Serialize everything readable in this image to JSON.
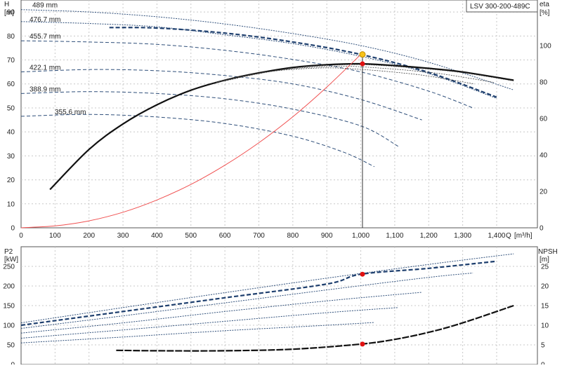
{
  "chart_data": [
    {
      "type": "line",
      "panel": "head",
      "title": "LSV 300-200-489C",
      "left_axis": {
        "name": "H",
        "unit": "[m]",
        "range": [
          0,
          95
        ],
        "ticks": [
          0,
          10,
          20,
          30,
          40,
          50,
          60,
          70,
          80,
          90
        ]
      },
      "right_axis": {
        "name": "eta",
        "unit": "[%]",
        "range": [
          0,
          125
        ],
        "ticks": [
          0,
          20,
          40,
          60,
          80,
          100
        ]
      },
      "x_axis": {
        "name": "Q",
        "unit": "[m³/h]",
        "range": [
          0,
          1520
        ],
        "ticks": [
          0,
          100,
          200,
          300,
          400,
          500,
          600,
          700,
          800,
          900,
          1000,
          1100,
          1200,
          1300,
          1400
        ],
        "tick_labels": [
          "0",
          "100",
          "200",
          "300",
          "400",
          "500",
          "600",
          "700",
          "800",
          "900",
          "1,000",
          "1,100",
          "1,200",
          "1,300",
          "1,400"
        ]
      },
      "grid": true,
      "head_series": [
        {
          "name": "489 mm",
          "style": "dotted",
          "x": [
            0,
            200,
            400,
            600,
            800,
            1000,
            1200,
            1450
          ],
          "y": [
            91,
            90,
            88,
            85,
            81,
            76,
            69,
            57.5
          ]
        },
        {
          "name": "476.7 mm",
          "style": "dashed-bold",
          "x": [
            260,
            400,
            600,
            800,
            1000,
            1200,
            1400
          ],
          "y": [
            83.5,
            83.3,
            81.2,
            77.5,
            72.3,
            64.8,
            54.5
          ]
        },
        {
          "name": "",
          "style": "dotted",
          "x": [
            0,
            200,
            400,
            600,
            800,
            1000,
            1200,
            1400
          ],
          "y": [
            86,
            85.2,
            83.8,
            80.5,
            76.8,
            71.5,
            64.3,
            54
          ]
        },
        {
          "name": "455.7 mm",
          "style": "dashed",
          "x": [
            0,
            200,
            400,
            600,
            800,
            1000,
            1200,
            1330
          ],
          "y": [
            78,
            77.5,
            76.5,
            74,
            70.2,
            65,
            57,
            50
          ]
        },
        {
          "name": "422.1 mm",
          "style": "dashed",
          "x": [
            0,
            200,
            400,
            600,
            800,
            1000,
            1180
          ],
          "y": [
            65,
            66,
            65.5,
            63.5,
            60,
            53.5,
            45
          ]
        },
        {
          "name": "388.9 mm",
          "style": "dashed",
          "x": [
            0,
            200,
            400,
            600,
            800,
            1000,
            1110
          ],
          "y": [
            56,
            56.8,
            56,
            53.8,
            49.5,
            42.5,
            34
          ]
        },
        {
          "name": "355.6 mm",
          "style": "dashed",
          "x": [
            0,
            200,
            400,
            600,
            800,
            950,
            1040
          ],
          "y": [
            46.5,
            47.3,
            46.2,
            43.5,
            38.2,
            31.5,
            25.5
          ]
        }
      ],
      "efficiency_series": [
        {
          "name": "",
          "style": "solid-bold",
          "x": [
            85,
            200,
            300,
            400,
            500,
            600,
            700,
            800,
            900,
            1000,
            1100,
            1200,
            1300,
            1450
          ],
          "y": [
            21,
            43,
            57,
            67.5,
            75.5,
            81,
            85,
            88,
            89.5,
            90,
            89,
            87.5,
            85.5,
            81
          ]
        }
      ],
      "system_curve": {
        "name": "",
        "x": [
          0,
          100,
          200,
          300,
          400,
          500,
          600,
          700,
          800,
          900,
          1000
        ],
        "y": [
          0,
          0.8,
          2.9,
          6.5,
          11.6,
          18.1,
          26.1,
          35.5,
          46.3,
          58.7,
          72.3
        ]
      },
      "operating_point": {
        "x": 1005,
        "h": 72.3,
        "eta": 90
      }
    },
    {
      "type": "line",
      "panel": "power_npsh",
      "left_axis": {
        "name": "P2",
        "unit": "[kW]",
        "range": [
          0,
          300
        ],
        "ticks": [
          0,
          50,
          100,
          150,
          200,
          250
        ]
      },
      "right_axis": {
        "name": "NPSH",
        "unit": "[m]",
        "range": [
          0,
          30
        ],
        "ticks": [
          0,
          5,
          10,
          15,
          20,
          25
        ]
      },
      "x_axis": {
        "name": "Q",
        "unit": "[m³/h]",
        "range": [
          0,
          1520
        ]
      },
      "grid": true,
      "power_series": [
        {
          "name": "489 mm",
          "style": "dotted",
          "x": [
            0,
            300,
            600,
            900,
            1200,
            1450
          ],
          "y": [
            106,
            145,
            183,
            220,
            255,
            282
          ]
        },
        {
          "name": "476.7 mm",
          "style": "dashed-bold",
          "x": [
            0,
            300,
            600,
            900,
            1000,
            1200,
            1400
          ],
          "y": [
            100,
            135,
            170,
            205,
            230,
            245,
            263
          ]
        },
        {
          "name": "455.7 mm",
          "style": "dotted",
          "x": [
            0,
            300,
            600,
            900,
            1200,
            1330
          ],
          "y": [
            92,
            124,
            157,
            190,
            222,
            233
          ]
        },
        {
          "name": "422.1 mm",
          "style": "dotted",
          "x": [
            0,
            300,
            600,
            900,
            1180
          ],
          "y": [
            80,
            106,
            135,
            162,
            184
          ]
        },
        {
          "name": "388.9 mm",
          "style": "dotted",
          "x": [
            0,
            300,
            600,
            900,
            1110
          ],
          "y": [
            67,
            88,
            110,
            132,
            145
          ]
        },
        {
          "name": "355.6 mm",
          "style": "dotted",
          "x": [
            0,
            300,
            600,
            900,
            1040
          ],
          "y": [
            55,
            70,
            86,
            100,
            107
          ]
        }
      ],
      "npsh_series": [
        {
          "name": "",
          "style": "dashed-bold",
          "x": [
            280,
            400,
            600,
            800,
            1000,
            1100,
            1200,
            1300,
            1450
          ],
          "y": [
            3.6,
            3.5,
            3.5,
            3.9,
            5.2,
            6.4,
            8.2,
            10.6,
            15
          ]
        }
      ],
      "operating_point": {
        "x": 1005,
        "p2": 230,
        "npsh": 5.2
      }
    }
  ]
}
